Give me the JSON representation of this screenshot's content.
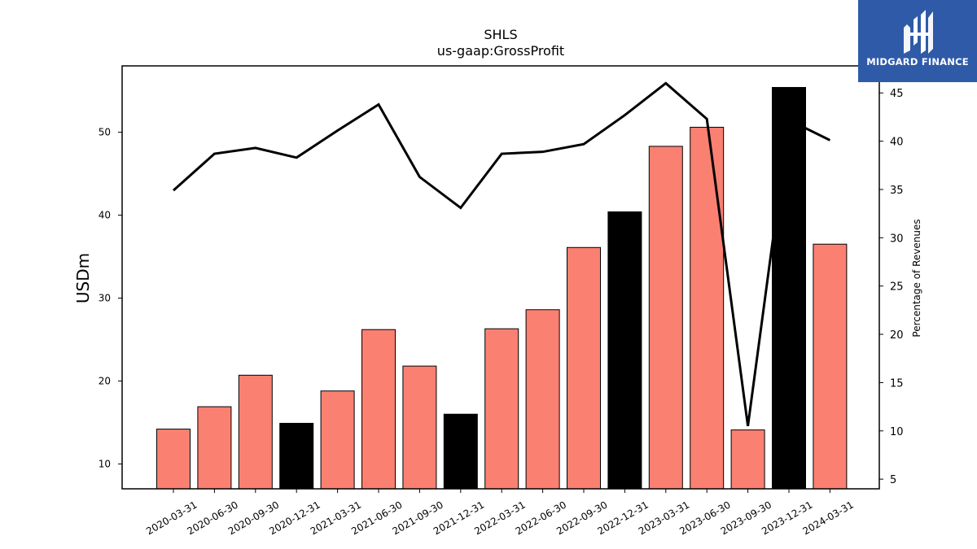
{
  "chart_data": {
    "type": "bar",
    "title": "SHLS",
    "subtitle": "us-gaap:GrossProfit",
    "ylabel": "USDm",
    "y2label": "Percentage of Revenues",
    "categories": [
      "2020-03-31",
      "2020-06-30",
      "2020-09-30",
      "2020-12-31",
      "2021-03-31",
      "2021-06-30",
      "2021-09-30",
      "2021-12-31",
      "2022-03-31",
      "2022-06-30",
      "2022-09-30",
      "2022-12-31",
      "2023-03-31",
      "2023-06-30",
      "2023-09-30",
      "2023-12-31",
      "2024-03-31"
    ],
    "series": [
      {
        "type": "bar",
        "axis": "left",
        "values": [
          14.2,
          16.9,
          20.7,
          14.9,
          18.8,
          26.2,
          21.8,
          16.0,
          26.3,
          28.6,
          36.1,
          40.4,
          48.3,
          50.6,
          14.1,
          55.4,
          36.5
        ],
        "colors": [
          "#fa8072",
          "#fa8072",
          "#fa8072",
          "#000000",
          "#fa8072",
          "#fa8072",
          "#fa8072",
          "#000000",
          "#fa8072",
          "#fa8072",
          "#fa8072",
          "#000000",
          "#fa8072",
          "#fa8072",
          "#fa8072",
          "#000000",
          "#fa8072"
        ]
      },
      {
        "type": "line",
        "axis": "right",
        "color": "#000000",
        "values": [
          34.9,
          38.7,
          39.3,
          38.3,
          41.1,
          43.8,
          36.3,
          33.1,
          38.7,
          38.9,
          39.7,
          42.7,
          46.0,
          42.3,
          10.5,
          42.2,
          40.1
        ]
      }
    ],
    "ylim": [
      7,
      58
    ],
    "y2lim": [
      4.0,
      47.8
    ],
    "yticks": [
      10,
      20,
      30,
      40,
      50
    ],
    "y2ticks": [
      5,
      10,
      15,
      20,
      25,
      30,
      35,
      40,
      45
    ],
    "grid": false,
    "colors": {
      "bar": "#fa8072",
      "bar_highlight": "#000000",
      "line": "#000000"
    }
  },
  "logo": {
    "text": "MIDGARD FINANCE",
    "background": "#2f5aa8"
  }
}
